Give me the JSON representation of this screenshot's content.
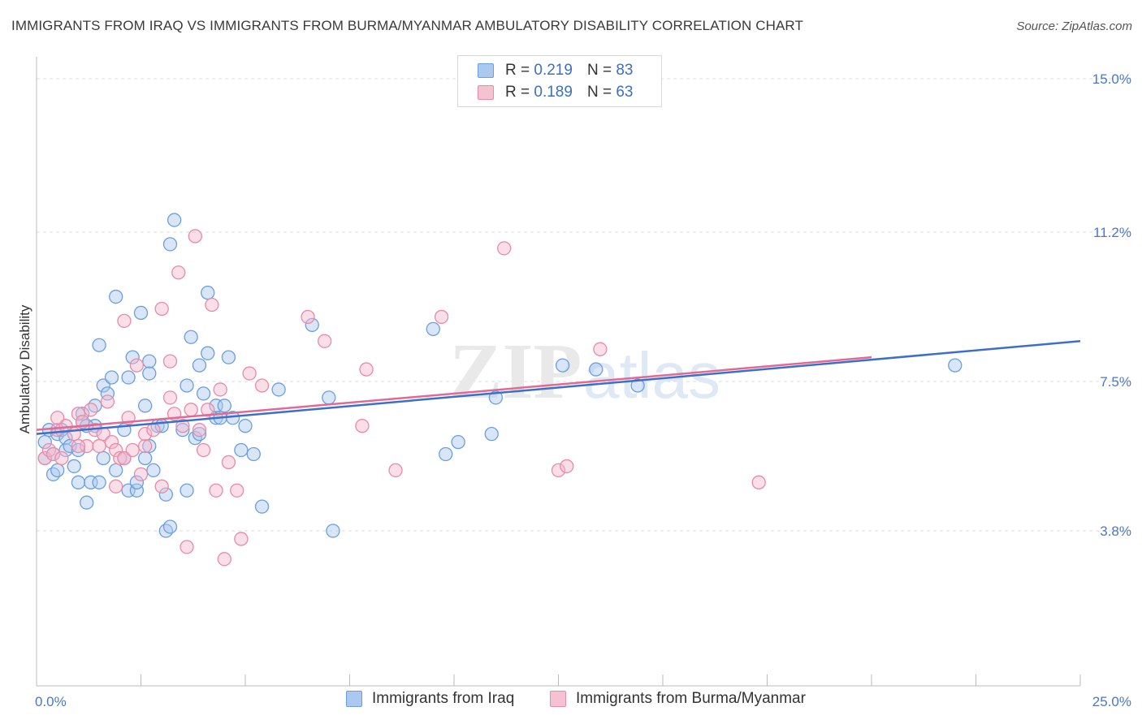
{
  "header": {
    "title": "IMMIGRANTS FROM IRAQ VS IMMIGRANTS FROM BURMA/MYANMAR AMBULATORY DISABILITY CORRELATION CHART",
    "source": "Source: ZipAtlas.com"
  },
  "watermark": {
    "zip": "ZIP",
    "atlas": "atlas"
  },
  "legend": {
    "rows": [
      {
        "r_label": "R =",
        "r_value": "0.219",
        "n_label": "N =",
        "n_value": "83"
      },
      {
        "r_label": "R =",
        "r_value": "0.189",
        "n_label": "N =",
        "n_value": "63"
      }
    ]
  },
  "bottom_legend": {
    "series1": "Immigrants from Iraq",
    "series2": "Immigrants from Burma/Myanmar"
  },
  "colors": {
    "blue_fill": "#aac8f0",
    "blue_stroke": "#6a9ee0",
    "blue_line": "#3d6fc9",
    "pink_fill": "#f5b8cb",
    "pink_stroke": "#e88aa8",
    "pink_line": "#e06a94",
    "tick_text": "#4a78c8"
  },
  "chart_data": {
    "type": "scatter",
    "title": "IMMIGRANTS FROM IRAQ VS IMMIGRANTS FROM BURMA/MYANMAR AMBULATORY DISABILITY CORRELATION CHART",
    "xlabel": "",
    "ylabel": "Ambulatory Disability",
    "xlim": [
      0,
      25
    ],
    "ylim": [
      0,
      15.5
    ],
    "x_ticks": [
      "0.0%",
      "25.0%"
    ],
    "y_ticks": [
      {
        "value": 3.8,
        "label": "3.8%"
      },
      {
        "value": 7.5,
        "label": "7.5%"
      },
      {
        "value": 11.2,
        "label": "11.2%"
      },
      {
        "value": 15.0,
        "label": "15.0%"
      }
    ],
    "grid": true,
    "series": [
      {
        "name": "Immigrants from Iraq",
        "color": "#6a9ee0",
        "points": [
          [
            0.2,
            6.0
          ],
          [
            0.2,
            5.6
          ],
          [
            0.3,
            6.3
          ],
          [
            0.4,
            5.2
          ],
          [
            0.5,
            5.3
          ],
          [
            0.5,
            6.2
          ],
          [
            0.6,
            6.3
          ],
          [
            0.7,
            5.8
          ],
          [
            0.7,
            6.1
          ],
          [
            0.8,
            5.9
          ],
          [
            0.9,
            5.4
          ],
          [
            1.0,
            5.0
          ],
          [
            1.0,
            5.8
          ],
          [
            1.1,
            6.5
          ],
          [
            1.1,
            6.7
          ],
          [
            1.2,
            4.5
          ],
          [
            1.3,
            5.0
          ],
          [
            1.4,
            6.4
          ],
          [
            1.4,
            6.9
          ],
          [
            1.5,
            8.4
          ],
          [
            1.5,
            5.0
          ],
          [
            1.6,
            5.6
          ],
          [
            1.6,
            7.4
          ],
          [
            1.7,
            7.2
          ],
          [
            1.8,
            7.6
          ],
          [
            1.9,
            5.3
          ],
          [
            1.9,
            9.6
          ],
          [
            2.1,
            5.6
          ],
          [
            2.1,
            6.3
          ],
          [
            2.2,
            7.6
          ],
          [
            2.2,
            4.8
          ],
          [
            2.3,
            8.1
          ],
          [
            2.4,
            4.8
          ],
          [
            2.4,
            5.0
          ],
          [
            2.5,
            9.2
          ],
          [
            2.6,
            6.9
          ],
          [
            2.6,
            5.6
          ],
          [
            2.7,
            7.7
          ],
          [
            2.7,
            8.0
          ],
          [
            2.8,
            5.3
          ],
          [
            2.9,
            6.4
          ],
          [
            3.0,
            6.4
          ],
          [
            3.1,
            4.7
          ],
          [
            3.1,
            3.8
          ],
          [
            3.2,
            3.9
          ],
          [
            3.2,
            10.9
          ],
          [
            3.3,
            11.5
          ],
          [
            3.5,
            6.3
          ],
          [
            3.6,
            7.4
          ],
          [
            3.6,
            4.8
          ],
          [
            3.7,
            8.6
          ],
          [
            3.8,
            6.1
          ],
          [
            3.9,
            6.2
          ],
          [
            3.9,
            7.9
          ],
          [
            4.0,
            7.2
          ],
          [
            4.1,
            9.7
          ],
          [
            4.1,
            8.2
          ],
          [
            4.3,
            6.6
          ],
          [
            4.3,
            6.9
          ],
          [
            4.4,
            6.6
          ],
          [
            4.5,
            6.9
          ],
          [
            4.6,
            8.1
          ],
          [
            4.7,
            6.6
          ],
          [
            4.9,
            5.8
          ],
          [
            5.0,
            6.4
          ],
          [
            5.2,
            5.7
          ],
          [
            5.4,
            4.4
          ],
          [
            5.8,
            7.3
          ],
          [
            6.6,
            8.9
          ],
          [
            7.0,
            7.1
          ],
          [
            7.1,
            3.8
          ],
          [
            9.5,
            8.8
          ],
          [
            9.8,
            5.7
          ],
          [
            10.1,
            6.0
          ],
          [
            10.9,
            6.2
          ],
          [
            12.6,
            7.9
          ],
          [
            13.4,
            7.8
          ],
          [
            14.4,
            7.4
          ],
          [
            22.0,
            7.9
          ],
          [
            11.0,
            7.1
          ],
          [
            2.7,
            5.9
          ],
          [
            1.2,
            6.4
          ],
          [
            0.4,
            5.7
          ]
        ]
      },
      {
        "name": "Immigrants from Burma/Myanmar",
        "color": "#e88aa8",
        "points": [
          [
            0.2,
            5.6
          ],
          [
            0.3,
            5.8
          ],
          [
            0.4,
            5.7
          ],
          [
            0.5,
            6.3
          ],
          [
            0.6,
            5.6
          ],
          [
            0.7,
            6.4
          ],
          [
            0.9,
            6.2
          ],
          [
            1.0,
            6.7
          ],
          [
            1.1,
            6.5
          ],
          [
            1.2,
            5.9
          ],
          [
            1.3,
            6.8
          ],
          [
            1.4,
            6.3
          ],
          [
            1.5,
            5.9
          ],
          [
            1.6,
            6.2
          ],
          [
            1.7,
            7.0
          ],
          [
            1.8,
            6.0
          ],
          [
            1.9,
            5.8
          ],
          [
            1.9,
            4.9
          ],
          [
            2.0,
            5.6
          ],
          [
            2.1,
            5.6
          ],
          [
            2.1,
            9.0
          ],
          [
            2.2,
            6.6
          ],
          [
            2.3,
            5.8
          ],
          [
            2.4,
            7.9
          ],
          [
            2.5,
            5.2
          ],
          [
            2.6,
            5.9
          ],
          [
            2.6,
            6.2
          ],
          [
            2.8,
            6.3
          ],
          [
            3.0,
            9.3
          ],
          [
            3.2,
            8.0
          ],
          [
            3.2,
            7.1
          ],
          [
            3.3,
            6.7
          ],
          [
            3.4,
            10.2
          ],
          [
            3.5,
            6.4
          ],
          [
            3.6,
            3.4
          ],
          [
            3.7,
            6.8
          ],
          [
            3.8,
            11.1
          ],
          [
            3.9,
            6.3
          ],
          [
            4.0,
            5.8
          ],
          [
            4.1,
            6.8
          ],
          [
            4.2,
            9.4
          ],
          [
            4.3,
            4.8
          ],
          [
            4.4,
            7.3
          ],
          [
            4.5,
            3.1
          ],
          [
            4.6,
            5.5
          ],
          [
            4.8,
            4.8
          ],
          [
            4.9,
            3.6
          ],
          [
            5.1,
            7.7
          ],
          [
            5.4,
            7.4
          ],
          [
            6.5,
            9.1
          ],
          [
            6.9,
            8.5
          ],
          [
            7.8,
            6.4
          ],
          [
            7.9,
            7.8
          ],
          [
            8.6,
            5.3
          ],
          [
            9.7,
            9.1
          ],
          [
            11.2,
            10.8
          ],
          [
            12.5,
            5.3
          ],
          [
            12.7,
            5.4
          ],
          [
            13.5,
            8.3
          ],
          [
            17.3,
            5.0
          ],
          [
            1.0,
            5.9
          ],
          [
            3.0,
            4.9
          ],
          [
            0.5,
            6.6
          ]
        ]
      }
    ],
    "trend_lines": [
      {
        "series": "Immigrants from Iraq",
        "x": [
          0,
          25
        ],
        "y": [
          6.2,
          8.5
        ]
      },
      {
        "series": "Immigrants from Burma/Myanmar",
        "x": [
          0,
          20
        ],
        "y": [
          6.3,
          8.1
        ]
      }
    ]
  },
  "axis": {
    "ylabel": "Ambulatory Disability",
    "x_min_label": "0.0%",
    "x_max_label": "25.0%"
  }
}
